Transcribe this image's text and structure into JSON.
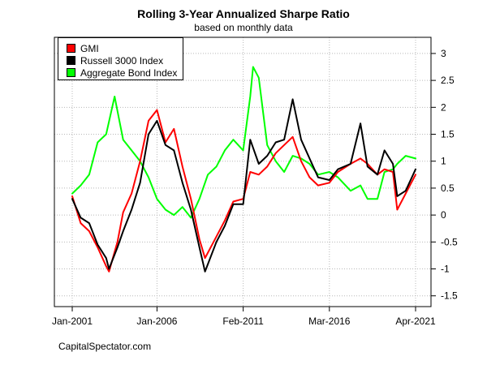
{
  "page": {
    "title": "Rolling 3-Year Annualized Sharpe Ratio",
    "subtitle": "based on monthly data",
    "credit": "CapitalSpectator.com"
  },
  "legend": [
    {
      "name": "GMI",
      "color": "#ff0000"
    },
    {
      "name": "Russell 3000 Index",
      "color": "#000000"
    },
    {
      "name": "Aggregate Bond Index",
      "color": "#00ff00"
    }
  ],
  "chart_data": {
    "type": "line",
    "title": "Rolling 3-Year Annualized Sharpe Ratio",
    "subtitle": "based on monthly data",
    "xlabel": "",
    "ylabel": "",
    "x_range": [
      "2001-01",
      "2021-04"
    ],
    "ylim": [
      -1.7,
      3.3
    ],
    "y_ticks": [
      -1.5,
      -1,
      -0.5,
      0,
      0.5,
      1,
      1.5,
      2,
      2.5,
      3
    ],
    "y_tick_labels": [
      "-1.5",
      "-1",
      "-0.5",
      "0",
      "0.5",
      "1",
      "1.5",
      "2",
      "2.5",
      "3"
    ],
    "y_axis_side": "right",
    "x_ticks": [
      "2001-01",
      "2006-01",
      "2011-02",
      "2016-03",
      "2021-04"
    ],
    "x_tick_labels": [
      "Jan-2001",
      "Jan-2006",
      "Feb-2011",
      "Mar-2016",
      "Apr-2021"
    ],
    "grid": true,
    "legend_position": "top-left",
    "series": [
      {
        "name": "GMI",
        "color": "#ff0000",
        "points": [
          [
            "2001-01",
            0.35
          ],
          [
            "2001-07",
            -0.15
          ],
          [
            "2002-01",
            -0.3
          ],
          [
            "2002-07",
            -0.6
          ],
          [
            "2003-01",
            -0.95
          ],
          [
            "2003-03",
            -1.05
          ],
          [
            "2003-09",
            -0.5
          ],
          [
            "2004-01",
            0.05
          ],
          [
            "2004-07",
            0.4
          ],
          [
            "2005-01",
            1.0
          ],
          [
            "2005-07",
            1.75
          ],
          [
            "2006-01",
            1.95
          ],
          [
            "2006-07",
            1.35
          ],
          [
            "2007-01",
            1.6
          ],
          [
            "2007-07",
            0.9
          ],
          [
            "2008-01",
            0.3
          ],
          [
            "2008-07",
            -0.45
          ],
          [
            "2008-11",
            -0.8
          ],
          [
            "2009-07",
            -0.4
          ],
          [
            "2010-01",
            -0.1
          ],
          [
            "2010-07",
            0.25
          ],
          [
            "2011-02",
            0.3
          ],
          [
            "2011-07",
            0.8
          ],
          [
            "2012-01",
            0.75
          ],
          [
            "2012-07",
            0.9
          ],
          [
            "2013-01",
            1.15
          ],
          [
            "2013-07",
            1.3
          ],
          [
            "2014-01",
            1.45
          ],
          [
            "2014-07",
            1.0
          ],
          [
            "2015-01",
            0.7
          ],
          [
            "2015-07",
            0.55
          ],
          [
            "2016-03",
            0.6
          ],
          [
            "2016-09",
            0.8
          ],
          [
            "2017-06",
            0.95
          ],
          [
            "2018-01",
            1.05
          ],
          [
            "2018-06",
            0.95
          ],
          [
            "2019-01",
            0.75
          ],
          [
            "2019-06",
            0.85
          ],
          [
            "2019-12",
            0.8
          ],
          [
            "2020-03",
            0.1
          ],
          [
            "2020-09",
            0.4
          ],
          [
            "2021-04",
            0.75
          ]
        ]
      },
      {
        "name": "Russell 3000 Index",
        "color": "#000000",
        "points": [
          [
            "2001-01",
            0.3
          ],
          [
            "2001-07",
            -0.05
          ],
          [
            "2002-01",
            -0.15
          ],
          [
            "2002-07",
            -0.55
          ],
          [
            "2003-01",
            -0.8
          ],
          [
            "2003-03",
            -1.0
          ],
          [
            "2003-09",
            -0.6
          ],
          [
            "2004-01",
            -0.3
          ],
          [
            "2004-07",
            0.1
          ],
          [
            "2005-01",
            0.6
          ],
          [
            "2005-07",
            1.5
          ],
          [
            "2006-01",
            1.75
          ],
          [
            "2006-07",
            1.3
          ],
          [
            "2007-01",
            1.2
          ],
          [
            "2007-07",
            0.6
          ],
          [
            "2008-01",
            0.1
          ],
          [
            "2008-07",
            -0.6
          ],
          [
            "2008-11",
            -1.05
          ],
          [
            "2009-07",
            -0.5
          ],
          [
            "2010-01",
            -0.2
          ],
          [
            "2010-07",
            0.2
          ],
          [
            "2011-02",
            0.2
          ],
          [
            "2011-07",
            1.4
          ],
          [
            "2012-01",
            0.95
          ],
          [
            "2012-07",
            1.1
          ],
          [
            "2013-01",
            1.35
          ],
          [
            "2013-07",
            1.4
          ],
          [
            "2014-01",
            2.15
          ],
          [
            "2014-07",
            1.4
          ],
          [
            "2015-01",
            1.05
          ],
          [
            "2015-07",
            0.7
          ],
          [
            "2016-03",
            0.65
          ],
          [
            "2016-09",
            0.85
          ],
          [
            "2017-06",
            0.95
          ],
          [
            "2018-01",
            1.7
          ],
          [
            "2018-06",
            0.9
          ],
          [
            "2019-01",
            0.75
          ],
          [
            "2019-06",
            1.2
          ],
          [
            "2019-12",
            0.95
          ],
          [
            "2020-03",
            0.35
          ],
          [
            "2020-09",
            0.45
          ],
          [
            "2021-04",
            0.85
          ]
        ]
      },
      {
        "name": "Aggregate Bond Index",
        "color": "#00ff00",
        "points": [
          [
            "2001-01",
            0.4
          ],
          [
            "2001-07",
            0.55
          ],
          [
            "2002-01",
            0.75
          ],
          [
            "2002-07",
            1.35
          ],
          [
            "2003-01",
            1.5
          ],
          [
            "2003-07",
            2.2
          ],
          [
            "2004-01",
            1.4
          ],
          [
            "2004-07",
            1.2
          ],
          [
            "2005-01",
            1.0
          ],
          [
            "2005-07",
            0.7
          ],
          [
            "2006-01",
            0.3
          ],
          [
            "2006-07",
            0.1
          ],
          [
            "2007-01",
            0.0
          ],
          [
            "2007-07",
            0.15
          ],
          [
            "2008-01",
            -0.05
          ],
          [
            "2008-07",
            0.3
          ],
          [
            "2009-01",
            0.75
          ],
          [
            "2009-07",
            0.9
          ],
          [
            "2010-01",
            1.2
          ],
          [
            "2010-07",
            1.4
          ],
          [
            "2011-02",
            1.2
          ],
          [
            "2011-07",
            2.2
          ],
          [
            "2011-09",
            2.75
          ],
          [
            "2012-01",
            2.55
          ],
          [
            "2012-07",
            1.3
          ],
          [
            "2013-01",
            1.0
          ],
          [
            "2013-07",
            0.8
          ],
          [
            "2014-01",
            1.1
          ],
          [
            "2014-07",
            1.05
          ],
          [
            "2015-01",
            0.95
          ],
          [
            "2015-07",
            0.75
          ],
          [
            "2016-03",
            0.8
          ],
          [
            "2016-09",
            0.7
          ],
          [
            "2017-06",
            0.45
          ],
          [
            "2018-01",
            0.55
          ],
          [
            "2018-06",
            0.3
          ],
          [
            "2019-01",
            0.3
          ],
          [
            "2019-06",
            0.8
          ],
          [
            "2019-12",
            0.85
          ],
          [
            "2020-03",
            0.95
          ],
          [
            "2020-09",
            1.1
          ],
          [
            "2021-04",
            1.05
          ]
        ]
      }
    ]
  }
}
